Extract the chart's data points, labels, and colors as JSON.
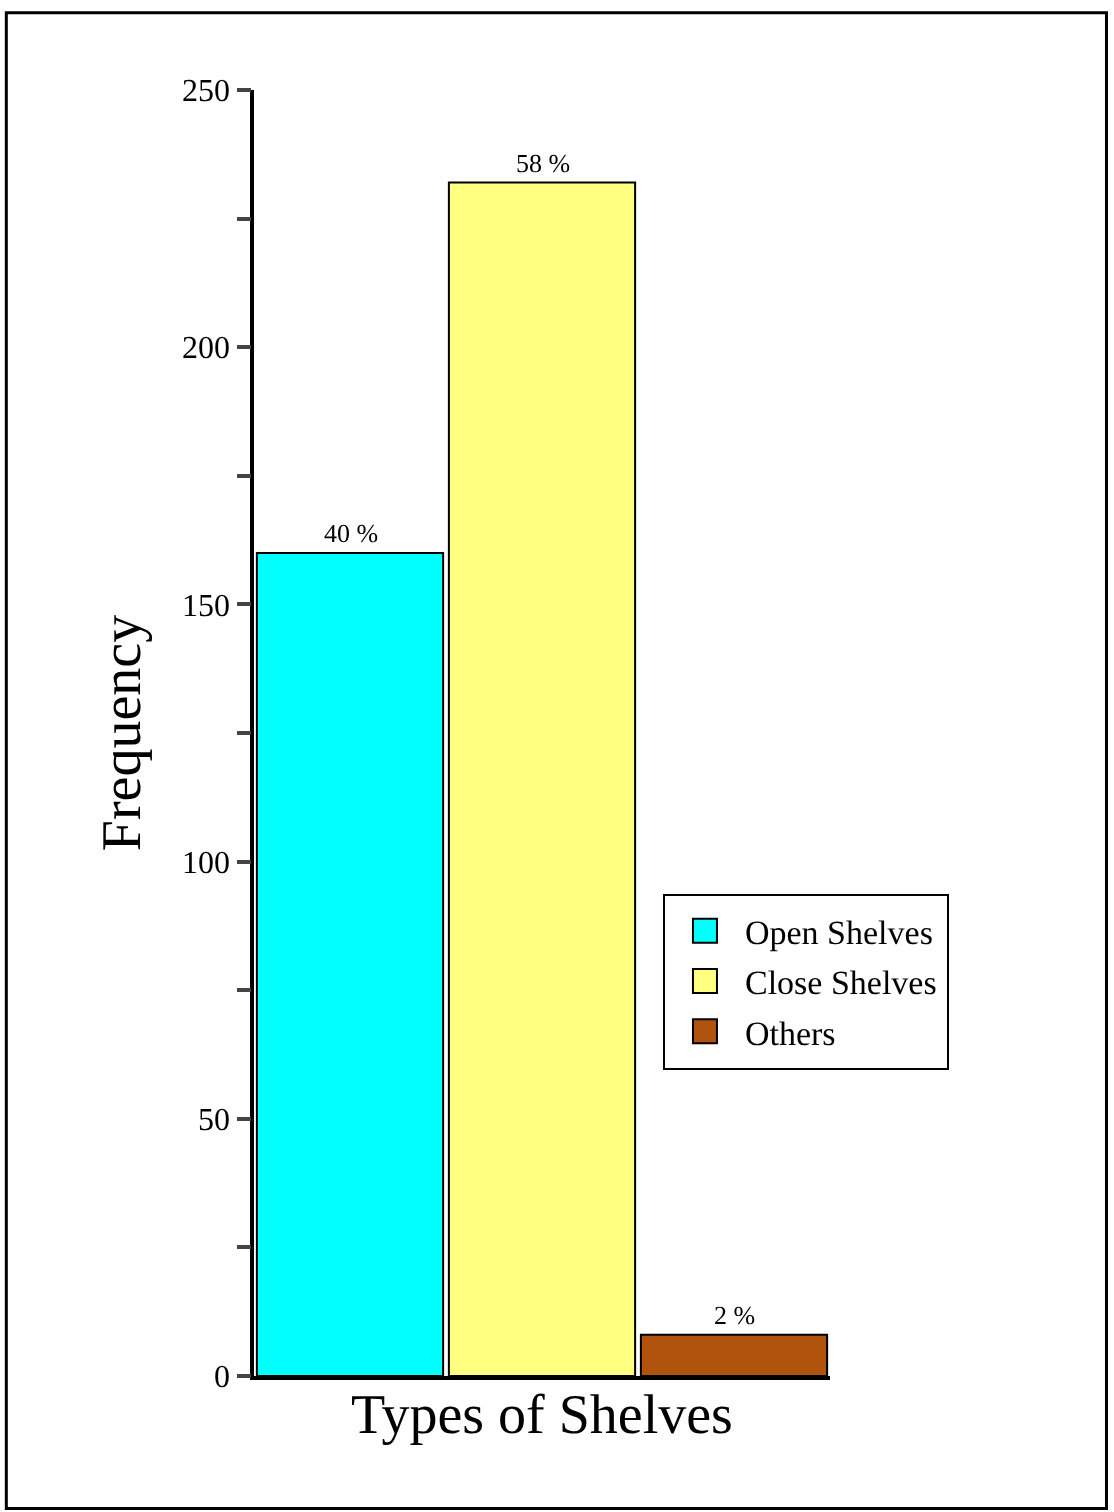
{
  "chart_data": {
    "type": "bar",
    "xlabel": "Types of Shelves",
    "ylabel": "Frequency",
    "categories": [
      null,
      null,
      null
    ],
    "series": [
      {
        "name": "Open Shelves",
        "color": "#00ffff",
        "values": [
          160,
          null,
          null
        ]
      },
      {
        "name": "Close Shelves",
        "color": "#ffff80",
        "values": [
          null,
          232,
          null
        ]
      },
      {
        "name": "Others",
        "color": "#b0540d",
        "values": [
          null,
          null,
          8
        ]
      }
    ],
    "annotations": [
      {
        "text": "40 %",
        "y": 160
      },
      {
        "text": "58 %",
        "y": 232
      },
      {
        "text": "2 %",
        "y": 8
      }
    ],
    "ylim": [
      0,
      250
    ],
    "yticks": [
      0,
      {
        "value": 25,
        "label": null
      },
      50,
      {
        "value": 75,
        "label": null
      },
      100,
      {
        "value": 125,
        "label": null
      },
      150,
      {
        "value": 175,
        "label": null
      },
      200,
      {
        "value": 225,
        "label": null
      },
      250
    ],
    "tick_labels": "y",
    "legend": "right"
  }
}
